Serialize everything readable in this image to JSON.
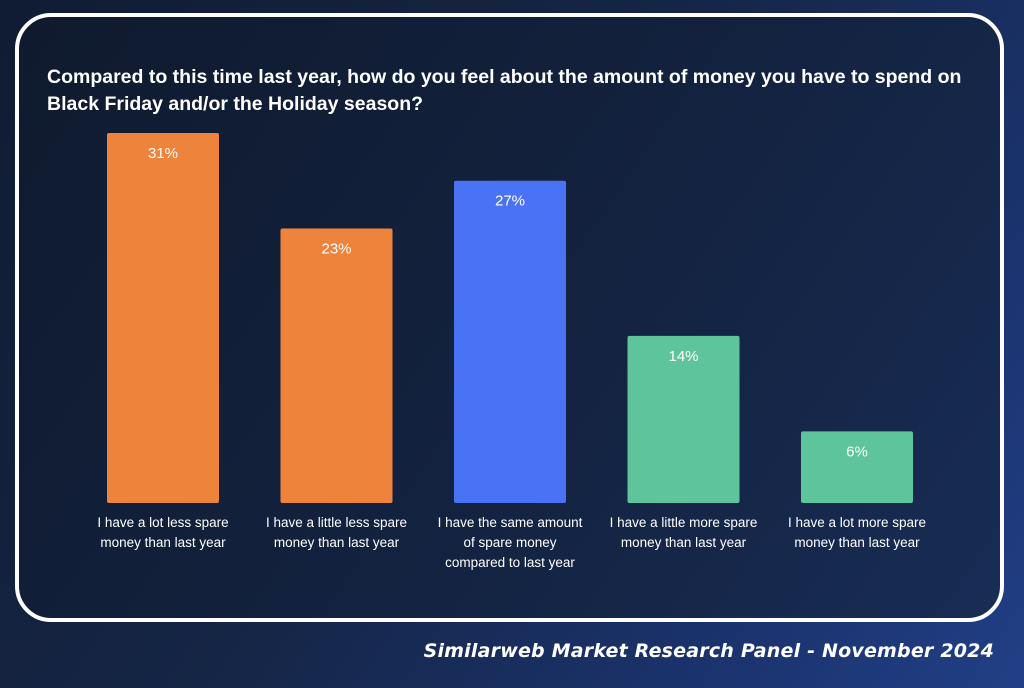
{
  "chart_data": {
    "type": "bar",
    "title": "Compared to this time last year, how do you feel about the amount of money you have to spend on Black Friday and/or the Holiday season?",
    "categories": [
      "I have a lot less spare money than last year",
      "I have a little less spare money than last year",
      "I have the same amount of spare money compared to last year",
      "I have a little more spare money than last year",
      "I have a lot more spare money than last year"
    ],
    "category_lines": [
      [
        "I have a lot less spare",
        "money than last year"
      ],
      [
        "I have a little less spare",
        "money than last year"
      ],
      [
        "I have the same amount",
        "of spare money",
        "compared to last year"
      ],
      [
        "I have a little more spare",
        "money than last year"
      ],
      [
        "I have a lot more spare",
        "money than last year"
      ]
    ],
    "values": [
      31,
      23,
      27,
      14,
      6
    ],
    "data_labels": [
      "31%",
      "23%",
      "27%",
      "14%",
      "6%"
    ],
    "unit": "%",
    "colors": [
      "#ee833b",
      "#ee833b",
      "#4a72f5",
      "#5ec49c",
      "#5ec49c"
    ],
    "ylim": [
      0,
      31
    ],
    "xlabel": "",
    "ylabel": "",
    "grid": false,
    "legend": "none"
  },
  "footer": "Similarweb Market Research Panel - November 2024",
  "colors": {
    "background": "#13223f",
    "frame_border": "#ffffff",
    "text": "#ffffff"
  }
}
